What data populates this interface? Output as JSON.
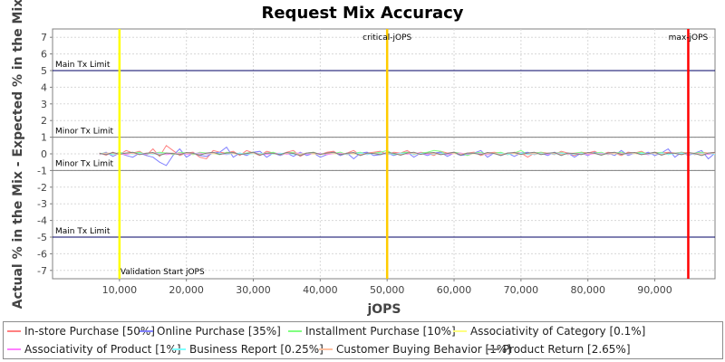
{
  "chart_data": {
    "type": "line",
    "title": "Request Mix Accuracy",
    "xlabel": "jOPS",
    "ylabel": "Actual % in the Mix - Expected % in the Mix",
    "xlim": [
      0,
      99000
    ],
    "ylim": [
      -7.5,
      7.5
    ],
    "x_ticks": [
      10000,
      20000,
      30000,
      40000,
      50000,
      60000,
      70000,
      80000,
      90000
    ],
    "x_tick_labels": [
      "10,000",
      "20,000",
      "30,000",
      "40,000",
      "50,000",
      "60,000",
      "70,000",
      "80,000",
      "90,000"
    ],
    "y_ticks": [
      -7,
      -6,
      -5,
      -4,
      -3,
      -2,
      -1,
      0,
      1,
      2,
      3,
      4,
      5,
      6,
      7
    ],
    "grid": true,
    "legend_position": "bottom",
    "x_start": 7000,
    "x_step": 1000,
    "series": [
      {
        "name": "In-store Purchase [50%]",
        "color": "#ff8080",
        "values": [
          0.05,
          -0.08,
          0.1,
          -0.05,
          0.2,
          0.05,
          0.15,
          -0.1,
          0.3,
          -0.15,
          0.5,
          0.2,
          -0.1,
          0.05,
          0.1,
          -0.2,
          -0.3,
          0.2,
          0.1,
          0.05,
          0.15,
          -0.1,
          0.2,
          0.05,
          -0.1,
          0.15,
          0.05,
          -0.05,
          0.1,
          0.2,
          -0.15,
          0.05,
          0.1,
          -0.05,
          0.1,
          0.15,
          -0.1,
          0.05,
          0.2,
          -0.1,
          0.05,
          0.1,
          0.15,
          -0.05,
          0.1,
          0.05,
          0.2,
          -0.05,
          0.1,
          0.05,
          -0.1,
          0.15,
          0.05,
          0.1,
          -0.05,
          0.05,
          0.1,
          -0.1,
          0.05,
          0.1,
          0.05,
          -0.05,
          0.1,
          0.05,
          -0.2,
          0.05,
          0.1,
          0.05,
          -0.05,
          0.15,
          0.05,
          -0.1,
          0.1,
          0.05,
          0.15,
          -0.05,
          0.1,
          0.05,
          -0.1,
          0.1,
          0.05,
          0.15,
          -0.05,
          0.1,
          0.05,
          0.1,
          0.05,
          0.1,
          0.05,
          -0.05,
          0.1,
          0.05,
          0.1
        ]
      },
      {
        "name": "Online Purchase [35%]",
        "color": "#8080ff",
        "values": [
          -0.05,
          0.1,
          -0.15,
          0.05,
          -0.1,
          -0.2,
          0.05,
          -0.1,
          -0.2,
          -0.5,
          -0.7,
          -0.1,
          0.3,
          -0.2,
          0.05,
          -0.1,
          -0.15,
          0.05,
          0.1,
          0.4,
          -0.2,
          0.05,
          -0.1,
          0.1,
          0.15,
          -0.2,
          0.05,
          -0.1,
          0.05,
          -0.15,
          0.1,
          -0.1,
          0.05,
          -0.2,
          -0.05,
          0.1,
          -0.1,
          0.05,
          -0.3,
          0.05,
          0.1,
          -0.1,
          -0.05,
          0.05,
          -0.1,
          0.05,
          0.1,
          -0.2,
          0.05,
          -0.1,
          0.05,
          0.1,
          -0.15,
          0.05,
          -0.1,
          -0.05,
          0.05,
          0.2,
          -0.2,
          0.05,
          -0.1,
          0.05,
          -0.15,
          0.05,
          0.1,
          -0.05,
          0.05,
          -0.1,
          0.1,
          -0.05,
          0.05,
          -0.2,
          0.05,
          -0.1,
          0.1,
          -0.05,
          0.05,
          -0.1,
          0.2,
          -0.1,
          0.05,
          -0.05,
          0.1,
          -0.1,
          0.05,
          0.3,
          -0.2,
          0.1,
          -0.1,
          0.05,
          0.2,
          -0.3,
          0.05
        ]
      },
      {
        "name": "Installment Purchase [10%]",
        "color": "#80ff80",
        "values": [
          0.02,
          0.05,
          -0.05,
          0.1,
          -0.02,
          0.05,
          0.1,
          -0.05,
          0.05,
          0.1,
          0.05,
          -0.05,
          0.1,
          0.05,
          -0.05,
          0.1,
          0.05,
          0.02,
          -0.05,
          0.1,
          0.05,
          -0.02,
          0.05,
          0.1,
          -0.05,
          0.05,
          0.1,
          -0.05,
          0.05,
          0.1,
          -0.02,
          0.05,
          0.1,
          -0.05,
          0.05,
          0.02,
          0.1,
          -0.05,
          0.05,
          0.1,
          -0.05,
          0.05,
          0.1,
          0.2,
          -0.05,
          0.05,
          0.1,
          -0.02,
          0.05,
          0.1,
          0.2,
          0.15,
          -0.05,
          0.1,
          0.05,
          -0.1,
          0.05,
          0.1,
          -0.05,
          0.05,
          0.1,
          -0.05,
          0.05,
          0.2,
          -0.05,
          0.05,
          0.1,
          -0.02,
          0.05,
          0.1,
          -0.05,
          0.05,
          0.1,
          -0.02,
          0.05,
          0.1,
          -0.05,
          0.05,
          0.1,
          -0.05,
          0.05,
          0.1,
          -0.02,
          0.05,
          0.1,
          -0.05,
          0.05,
          0.1,
          -0.05,
          0.05,
          0.1,
          -0.02,
          0.05
        ]
      },
      {
        "name": "Associativity of Category [0.1%]",
        "color": "#ffff80",
        "values": [
          0.01,
          0.02,
          0.0,
          0.01,
          -0.01,
          0.02,
          0.01,
          0.0,
          0.02,
          0.01,
          -0.01,
          0.02,
          0.01,
          0.0,
          0.01,
          0.02,
          -0.01,
          0.01,
          0.0,
          0.02,
          0.01,
          -0.01,
          0.01,
          0.02,
          0.0,
          0.01,
          -0.01,
          0.02,
          0.01,
          0.0,
          0.02,
          0.01,
          -0.01,
          0.01,
          0.02,
          0.0,
          0.01,
          0.02,
          -0.01,
          0.01,
          0.0,
          0.02,
          0.01,
          -0.01,
          0.01,
          0.02,
          0.0,
          0.01,
          -0.01,
          0.02,
          0.01,
          0.0,
          0.02,
          0.01,
          -0.01,
          0.01,
          0.02,
          0.0,
          0.01,
          0.02,
          -0.01,
          0.01,
          0.0,
          0.02,
          0.01,
          -0.01,
          0.01,
          0.02,
          0.0,
          0.01,
          -0.01,
          0.02,
          0.01,
          0.0,
          0.02,
          0.01,
          -0.01,
          0.01,
          0.02,
          0.0,
          0.01,
          0.02,
          -0.01,
          0.01,
          0.0,
          0.02,
          0.01,
          -0.01,
          0.01,
          0.02,
          0.0,
          0.01
        ]
      },
      {
        "name": "Associativity of Product [1%]",
        "color": "#ff80ff",
        "values": [
          0.02,
          -0.03,
          0.05,
          0.02,
          -0.05,
          0.03,
          0.02,
          -0.02,
          0.05,
          0.03,
          -0.05,
          0.02,
          0.04,
          -0.03,
          0.02,
          0.05,
          -0.02,
          0.03,
          0.02,
          -0.05,
          0.03,
          0.02,
          -0.02,
          0.05,
          0.03,
          -0.03,
          0.02,
          0.04,
          -0.02,
          0.03,
          0.05,
          -0.02,
          0.02,
          0.03,
          -0.05,
          0.02,
          0.03,
          -0.02,
          0.05,
          0.02,
          -0.03,
          0.03,
          0.02,
          -0.05,
          0.02,
          0.04,
          -0.02,
          0.03,
          0.05,
          -0.02,
          0.02,
          0.03,
          -0.03,
          0.02,
          0.05,
          -0.02,
          0.03,
          0.02,
          -0.05,
          0.03,
          0.02,
          -0.02,
          0.05,
          0.03,
          -0.03,
          0.02,
          0.04,
          -0.02,
          0.03,
          0.05,
          -0.02,
          0.02,
          0.03,
          -0.05,
          0.02,
          0.03,
          -0.02,
          0.05,
          0.02,
          -0.03,
          0.03,
          0.02,
          -0.05,
          0.02,
          0.04,
          -0.02,
          0.03,
          0.05,
          -0.02,
          0.02,
          0.03,
          -0.03,
          0.02
        ]
      },
      {
        "name": "Business Report [0.25%]",
        "color": "#80ffff",
        "values": [
          0.01,
          0.03,
          -0.02,
          0.02,
          0.04,
          -0.01,
          0.02,
          0.03,
          -0.02,
          0.01,
          0.02,
          0.04,
          -0.01,
          0.02,
          0.03,
          -0.02,
          0.01,
          0.02,
          0.03,
          -0.01,
          0.02,
          0.04,
          -0.02,
          0.01,
          0.02,
          0.03,
          -0.01,
          0.02,
          0.04,
          -0.02,
          0.01,
          0.02,
          0.03,
          -0.01,
          0.02,
          0.03,
          -0.02,
          0.01,
          0.02,
          0.04,
          -0.01,
          0.02,
          0.03,
          -0.02,
          0.01,
          0.02,
          0.03,
          -0.01,
          0.02,
          0.04,
          -0.02,
          0.01,
          0.02,
          0.03,
          -0.01,
          0.02,
          0.04,
          -0.02,
          0.01,
          0.02,
          0.03,
          -0.01,
          0.02,
          0.03,
          -0.02,
          0.01,
          0.02,
          0.04,
          -0.01,
          0.02,
          0.03,
          -0.02,
          0.01,
          0.02,
          0.03,
          -0.01,
          0.02,
          0.04,
          -0.02,
          0.01,
          0.02,
          0.03,
          -0.01,
          0.02,
          0.04,
          -0.02,
          0.01,
          0.02,
          0.03,
          -0.01,
          0.02,
          0.03,
          -0.02
        ]
      },
      {
        "name": "Customer Buying Behavior [1%]",
        "color": "#ffc0a0",
        "values": [
          -0.02,
          0.05,
          0.03,
          -0.05,
          0.04,
          0.02,
          -0.03,
          0.05,
          0.02,
          -0.04,
          0.03,
          0.05,
          -0.02,
          0.04,
          0.02,
          -0.05,
          0.03,
          0.04,
          -0.02,
          0.05,
          0.03,
          -0.04,
          0.02,
          0.05,
          -0.03,
          0.04,
          0.02,
          -0.05,
          0.03,
          0.04,
          -0.02,
          0.05,
          0.03,
          -0.04,
          0.02,
          0.05,
          -0.03,
          0.04,
          0.02,
          -0.05,
          0.03,
          0.04,
          -0.02,
          0.05,
          0.03,
          -0.04,
          0.02,
          0.05,
          -0.03,
          0.04,
          0.02,
          -0.05,
          0.03,
          0.04,
          -0.02,
          0.05,
          0.03,
          -0.04,
          0.02,
          0.05,
          -0.03,
          0.04,
          0.02,
          -0.05,
          0.03,
          0.04,
          -0.02,
          0.05,
          0.03,
          -0.04,
          0.02,
          0.05,
          -0.03,
          0.04,
          0.02,
          -0.05,
          0.03,
          0.04,
          -0.02,
          0.05,
          0.03,
          -0.04,
          0.02,
          0.05,
          -0.03,
          0.04,
          0.02,
          -0.05,
          0.03,
          0.04,
          -0.02,
          0.05,
          0.03
        ]
      },
      {
        "name": "Product Return [2.65%]",
        "color": "#808080",
        "values": [
          0.03,
          -0.05,
          0.08,
          -0.02,
          0.05,
          0.1,
          -0.05,
          0.03,
          0.08,
          -0.1,
          0.05,
          0.02,
          -0.05,
          0.08,
          0.03,
          -0.08,
          0.05,
          0.1,
          -0.03,
          0.05,
          0.08,
          -0.05,
          0.02,
          0.1,
          -0.08,
          0.05,
          0.03,
          -0.05,
          0.08,
          0.02,
          -0.1,
          0.05,
          0.08,
          -0.03,
          0.05,
          0.1,
          -0.05,
          0.03,
          0.08,
          -0.1,
          0.05,
          0.02,
          -0.05,
          0.08,
          0.03,
          -0.08,
          0.05,
          0.1,
          -0.03,
          0.05,
          0.08,
          -0.05,
          0.02,
          0.1,
          -0.08,
          0.05,
          0.03,
          -0.05,
          0.08,
          0.02,
          -0.1,
          0.05,
          0.08,
          -0.03,
          0.05,
          0.1,
          -0.05,
          0.03,
          0.08,
          -0.1,
          0.05,
          0.02,
          -0.05,
          0.08,
          0.03,
          -0.08,
          0.05,
          0.1,
          -0.03,
          0.05,
          0.08,
          -0.05,
          0.02,
          0.1,
          -0.08,
          0.05,
          0.03,
          -0.05,
          0.08,
          0.02,
          -0.1,
          0.05,
          0.08
        ]
      }
    ],
    "horizontal_markers": [
      {
        "label": "Main Tx Limit",
        "y": 5,
        "color": "#000066"
      },
      {
        "label": "Minor Tx Limit",
        "y": 1,
        "color": "#808080"
      },
      {
        "label": "Minor Tx Limit",
        "y": -1,
        "color": "#808080"
      },
      {
        "label": "Main Tx Limit",
        "y": -5,
        "color": "#000066"
      }
    ],
    "vertical_markers": [
      {
        "label": "Validation Start jOPS",
        "x": 10000,
        "color": "#ffff00"
      },
      {
        "label": "critical-jOPS",
        "x": 50000,
        "color": "#ffcc00"
      },
      {
        "label": "max-jOPS",
        "x": 95000,
        "color": "#ff0000"
      }
    ]
  }
}
